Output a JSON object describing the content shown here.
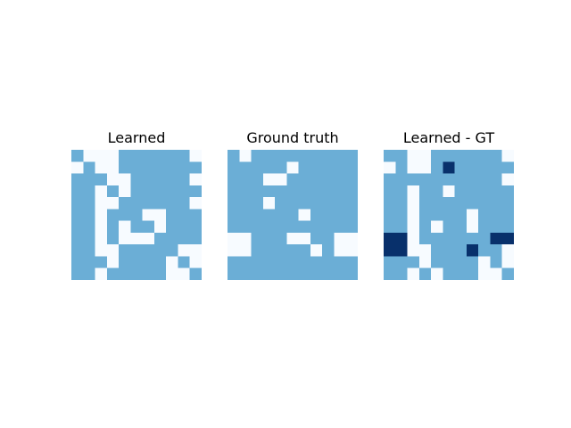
{
  "chart_data": [
    {
      "type": "heatmap",
      "title": "Learned",
      "colors": {
        "0": "#f7fbff",
        "1": "#6baed6",
        "2": "#08306b"
      },
      "values": [
        [
          1,
          0,
          0,
          0,
          1,
          1,
          1,
          1,
          1,
          1,
          0
        ],
        [
          0,
          1,
          0,
          0,
          1,
          1,
          1,
          1,
          1,
          1,
          1
        ],
        [
          1,
          1,
          1,
          0,
          0,
          1,
          1,
          1,
          1,
          1,
          0
        ],
        [
          1,
          1,
          0,
          1,
          0,
          1,
          1,
          1,
          1,
          1,
          1
        ],
        [
          1,
          1,
          0,
          0,
          1,
          1,
          1,
          1,
          1,
          1,
          0
        ],
        [
          1,
          1,
          0,
          1,
          1,
          1,
          0,
          0,
          1,
          1,
          1
        ],
        [
          1,
          1,
          0,
          1,
          0,
          1,
          1,
          0,
          1,
          1,
          1
        ],
        [
          1,
          1,
          0,
          1,
          0,
          0,
          0,
          1,
          1,
          1,
          1
        ],
        [
          1,
          1,
          0,
          0,
          1,
          1,
          1,
          1,
          1,
          0,
          0
        ],
        [
          1,
          1,
          1,
          0,
          1,
          1,
          1,
          1,
          0,
          1,
          0
        ],
        [
          1,
          1,
          0,
          1,
          1,
          1,
          1,
          1,
          0,
          0,
          1
        ]
      ]
    },
    {
      "type": "heatmap",
      "title": "Ground truth",
      "colors": {
        "0": "#f7fbff",
        "1": "#6baed6",
        "2": "#08306b"
      },
      "values": [
        [
          1,
          0,
          1,
          1,
          1,
          1,
          1,
          1,
          1,
          1,
          1
        ],
        [
          1,
          1,
          1,
          1,
          1,
          0,
          1,
          1,
          1,
          1,
          1
        ],
        [
          1,
          1,
          1,
          0,
          0,
          1,
          1,
          1,
          1,
          1,
          1
        ],
        [
          1,
          1,
          1,
          1,
          1,
          1,
          1,
          1,
          1,
          1,
          1
        ],
        [
          1,
          1,
          1,
          0,
          1,
          1,
          1,
          1,
          1,
          1,
          1
        ],
        [
          1,
          1,
          1,
          1,
          1,
          1,
          0,
          1,
          1,
          1,
          1
        ],
        [
          1,
          1,
          1,
          1,
          1,
          1,
          1,
          1,
          1,
          1,
          1
        ],
        [
          0,
          0,
          1,
          1,
          1,
          0,
          0,
          1,
          1,
          0,
          0
        ],
        [
          0,
          0,
          1,
          1,
          1,
          1,
          1,
          0,
          1,
          0,
          0
        ],
        [
          1,
          1,
          1,
          1,
          1,
          1,
          1,
          1,
          1,
          1,
          1
        ],
        [
          1,
          1,
          1,
          1,
          1,
          1,
          1,
          1,
          1,
          1,
          1
        ]
      ]
    },
    {
      "type": "heatmap",
      "title": "Learned - GT",
      "colors": {
        "0": "#f7fbff",
        "1": "#6baed6",
        "2": "#08306b"
      },
      "values": [
        [
          1,
          1,
          0,
          0,
          1,
          1,
          1,
          1,
          1,
          1,
          0
        ],
        [
          0,
          1,
          0,
          0,
          1,
          2,
          1,
          1,
          1,
          1,
          1
        ],
        [
          1,
          1,
          1,
          1,
          1,
          1,
          1,
          1,
          1,
          1,
          0
        ],
        [
          1,
          1,
          0,
          1,
          1,
          0,
          1,
          1,
          1,
          1,
          1
        ],
        [
          1,
          1,
          0,
          1,
          1,
          1,
          1,
          1,
          1,
          1,
          1
        ],
        [
          1,
          1,
          0,
          1,
          1,
          1,
          1,
          0,
          1,
          1,
          1
        ],
        [
          1,
          1,
          0,
          1,
          0,
          1,
          1,
          0,
          1,
          1,
          1
        ],
        [
          2,
          2,
          0,
          1,
          1,
          1,
          1,
          1,
          1,
          2,
          2
        ],
        [
          2,
          2,
          0,
          0,
          1,
          1,
          1,
          2,
          1,
          1,
          0
        ],
        [
          1,
          1,
          1,
          0,
          1,
          1,
          1,
          1,
          0,
          1,
          0
        ],
        [
          1,
          1,
          0,
          1,
          0,
          1,
          1,
          1,
          0,
          0,
          1
        ]
      ]
    }
  ]
}
